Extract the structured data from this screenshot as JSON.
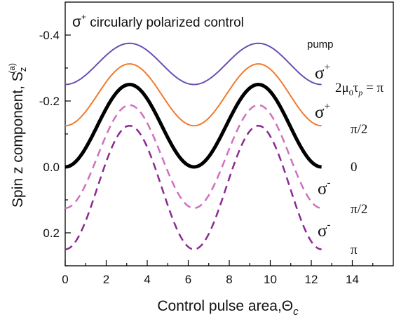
{
  "chart_data": {
    "type": "line",
    "title": "σ+ circularly polarized control",
    "title_parts": {
      "sigma": "σ",
      "sup": "+",
      "rest": " circularly polarized control"
    },
    "xlabel": "Control pulse area,Θc",
    "xlabel_parts": {
      "main": "Control pulse area,",
      "theta": "Θ",
      "sub": "c"
    },
    "ylabel": "Spin z component, Sz(a)",
    "ylabel_parts": {
      "main": "Spin z component, ",
      "S": "S",
      "sub": "z",
      "sup": "(a)"
    },
    "xlim": [
      0,
      16
    ],
    "ylim": [
      0.3,
      -0.5
    ],
    "y_axis_inverted": true,
    "x_ticks": [
      0,
      2,
      4,
      6,
      8,
      10,
      12,
      14
    ],
    "x_tick_labels": [
      "0",
      "2",
      "4",
      "6",
      "8",
      "10",
      "12",
      "14"
    ],
    "y_ticks": [
      0.2,
      0.0,
      -0.2,
      -0.4
    ],
    "y_tick_labels": [
      "0.2",
      "0.0",
      "-0.2",
      "-0.4"
    ],
    "x_range_of_curves": [
      0,
      12.5
    ],
    "series": [
      {
        "style": "solid",
        "color": "#6a4fb0",
        "width": 2,
        "x": [
          0,
          3.14,
          6.28,
          9.42,
          12.5
        ],
        "y": [
          -0.25,
          -0.375,
          -0.25,
          -0.375,
          -0.25
        ]
      },
      {
        "style": "solid",
        "color": "#f07a2a",
        "width": 2,
        "x": [
          0,
          3.14,
          6.28,
          9.42,
          12.5
        ],
        "y": [
          -0.125,
          -0.3125,
          -0.125,
          -0.3125,
          -0.125
        ]
      },
      {
        "style": "solid",
        "color": "#000000",
        "width": 5,
        "x": [
          0,
          3.14,
          6.28,
          9.42,
          12.5
        ],
        "y": [
          0.0,
          -0.25,
          0.0,
          -0.25,
          0.0
        ]
      },
      {
        "style": "dashed",
        "color": "#d070c0",
        "width": 2.5,
        "x": [
          0,
          3.14,
          6.28,
          9.42,
          12.5
        ],
        "y": [
          0.125,
          -0.1875,
          0.125,
          -0.1875,
          0.125
        ]
      },
      {
        "style": "dashed",
        "color": "#8a2a90",
        "width": 2.5,
        "x": [
          0,
          3.14,
          6.28,
          9.42,
          12.5
        ],
        "y": [
          0.25,
          -0.125,
          0.25,
          -0.125,
          0.25
        ]
      }
    ],
    "annotations": {
      "pump": "pump",
      "sigma_plus": "σ",
      "plus": "+",
      "sigma_minus": "σ",
      "minus": "-",
      "pulse_label": {
        "pre": "2μ",
        "sub0": "0",
        "tau": "τ",
        "subp": "p",
        "post": " = π"
      },
      "levels": [
        "π/2",
        "0",
        "π/2",
        "π"
      ]
    }
  }
}
